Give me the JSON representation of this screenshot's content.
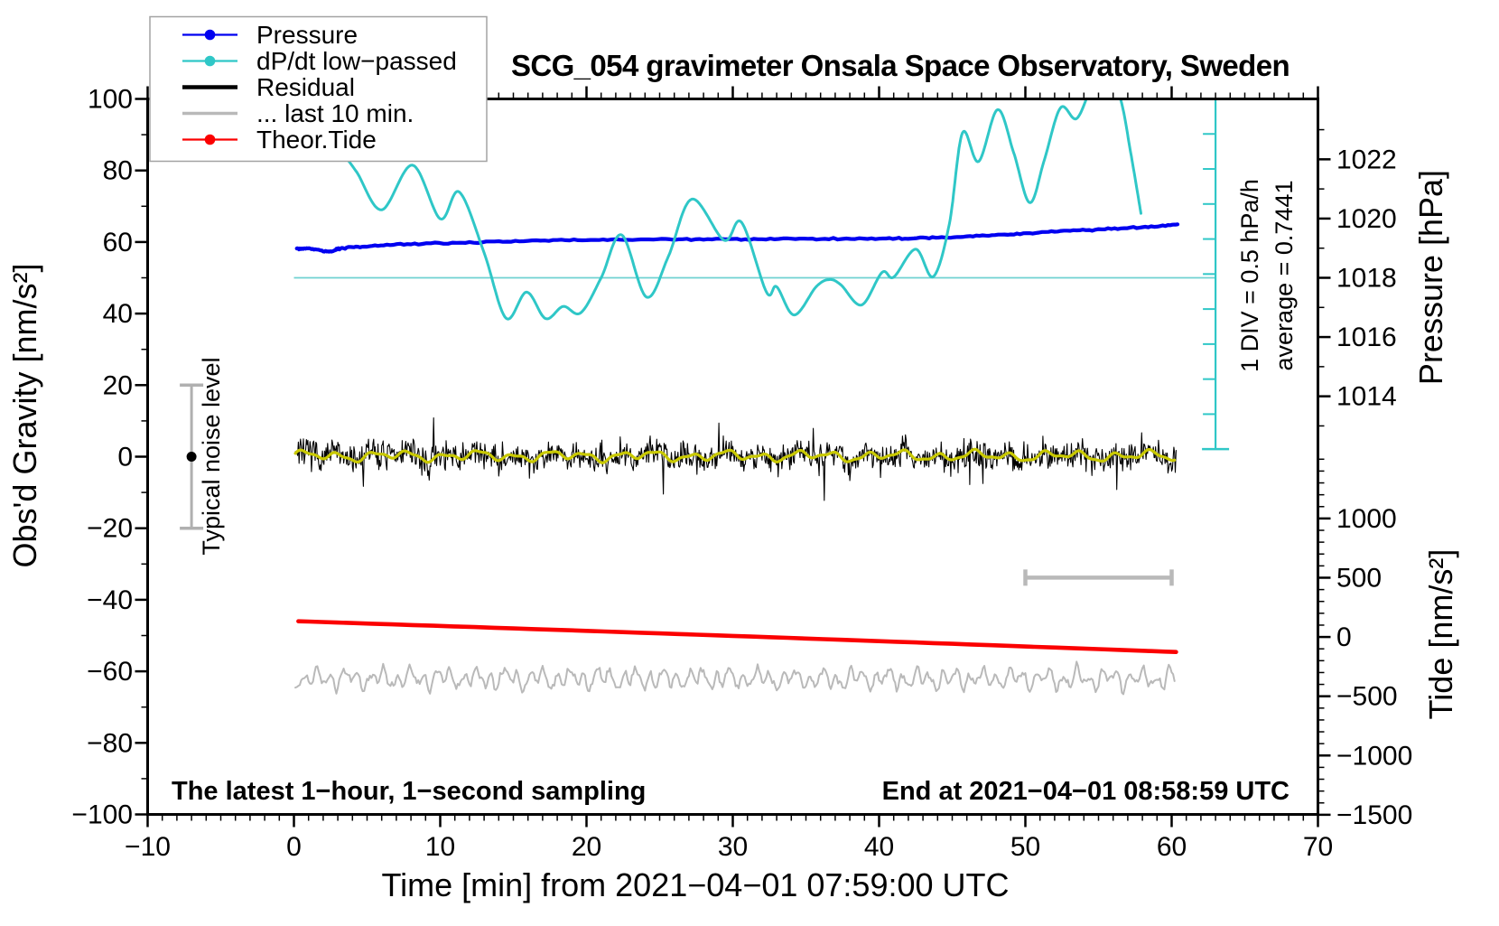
{
  "title": "SCG_054 gravimeter Onsala Space Observatory, Sweden",
  "annotations": {
    "sampling_note": "The latest 1−hour, 1−second sampling",
    "end_note": "End at 2021−04−01 08:58:59 UTC",
    "div_label": "1 DIV = 0.5 hPa/h",
    "average_label": "average = 0.7441",
    "noise_label": "Typical noise level"
  },
  "legend": {
    "items": [
      {
        "label": "Pressure",
        "color": "#0000f0",
        "dot": true,
        "lw": 2.2
      },
      {
        "label": "dP/dt low−passed",
        "color": "#2fc7c7",
        "dot": true,
        "lw": 2.2
      },
      {
        "label": "Residual",
        "color": "#000000",
        "dot": false,
        "lw": 4.5
      },
      {
        "label": "... last 10 min.",
        "color": "#b9b9b9",
        "dot": false,
        "lw": 3.5
      },
      {
        "label": "Theor.Tide",
        "color": "#fb0000",
        "dot": true,
        "lw": 2.2
      }
    ]
  },
  "colors": {
    "blue": "#0000f0",
    "cyan": "#2fc7c7",
    "cyan_light": "#6fd1d1",
    "red": "#fb0000",
    "gray": "#b9b9b9",
    "yellow": "#c9c900",
    "black": "#000000"
  },
  "chart_data": {
    "type": "line",
    "x_axis": {
      "title": "Time [min] from 2021−04−01 07:59:00 UTC",
      "range": [
        -10,
        70
      ],
      "major_step": 10,
      "minor_step": 1,
      "major_values": [
        -10,
        0,
        10,
        20,
        30,
        40,
        50,
        60,
        70
      ],
      "major_labels": [
        "−10",
        "0",
        "10",
        "20",
        "30",
        "40",
        "50",
        "60",
        "70"
      ]
    },
    "y_left_axis": {
      "title": "Obs'd Gravity [nm/s²]",
      "range": [
        -100,
        100
      ],
      "major_step": 20,
      "minor_step": 10,
      "major_values": [
        -100,
        -80,
        -60,
        -40,
        -20,
        0,
        20,
        40,
        60,
        80,
        100
      ],
      "major_labels": [
        "−100",
        "−80",
        "−60",
        "−40",
        "−20",
        "0",
        "20",
        "40",
        "60",
        "80",
        "100"
      ]
    },
    "pressure_axis": {
      "title": "Pressure [hPa]",
      "ref_hpa": 1018,
      "ref_g": 50,
      "g_per_hpa": 8.28,
      "major_values": [
        1014,
        1016,
        1018,
        1020,
        1022
      ],
      "major_labels": [
        "1014",
        "1016",
        "1018",
        "1020",
        "1022"
      ],
      "minor_step": 1,
      "minor_range": [
        1013,
        1023
      ]
    },
    "tide_axis": {
      "title": "Tide [nm/s²]",
      "ref_tide": 0,
      "ref_g": -50.4,
      "g_per_unit": 0.03313,
      "major_values": [
        -1500,
        -1000,
        -500,
        0,
        500,
        1000
      ],
      "major_labels": [
        "−1500",
        "−1000",
        "−500",
        "0",
        "500",
        "1000"
      ],
      "minor_step": 100,
      "minor_range": [
        -1500,
        1500
      ]
    },
    "ref_line": {
      "g": 50,
      "t_start": 0,
      "t_end": 63,
      "note": "dP/dt zero reference = 1018 hPa"
    },
    "div_bar": {
      "t": 63,
      "top_g": 100,
      "bottom_g": 2.1,
      "divisions": 10
    },
    "last10_bar": {
      "t_start": 50,
      "t_end": 60,
      "g": -33.8
    },
    "noise_indicator": {
      "t": -7,
      "g": 0,
      "half_range": 20
    },
    "series": {
      "pressure": {
        "name": "Pressure",
        "units": "gravity-equivalent nm/s2 (1018 hPa = 50)",
        "keypoints": [
          [
            0.2,
            58.2
          ],
          [
            1.2,
            58.1
          ],
          [
            2.4,
            57.3
          ],
          [
            3.2,
            58.2
          ],
          [
            5,
            58.8
          ],
          [
            8,
            59.4
          ],
          [
            12,
            59.9
          ],
          [
            16,
            60.3
          ],
          [
            20,
            60.6
          ],
          [
            24,
            60.75
          ],
          [
            28,
            60.75
          ],
          [
            32,
            60.8
          ],
          [
            36,
            60.9
          ],
          [
            40,
            60.9
          ],
          [
            43,
            61.1
          ],
          [
            46,
            61.6
          ],
          [
            49,
            62.2
          ],
          [
            52,
            62.9
          ],
          [
            55,
            63.5
          ],
          [
            58,
            64.2
          ],
          [
            60.4,
            64.8
          ]
        ]
      },
      "dpdt_lowpassed": {
        "name": "dP/dt low-passed",
        "keypoints": [
          [
            3.2,
            85.5
          ],
          [
            4.3,
            79.5
          ],
          [
            6.0,
            69
          ],
          [
            8.1,
            81.5
          ],
          [
            10.0,
            66.5
          ],
          [
            11.3,
            74
          ],
          [
            13.0,
            57
          ],
          [
            14.5,
            38.7
          ],
          [
            15.9,
            46
          ],
          [
            17.2,
            38.6
          ],
          [
            18.4,
            42
          ],
          [
            19.6,
            40.2
          ],
          [
            21.0,
            50
          ],
          [
            22.4,
            62
          ],
          [
            24.1,
            44.6
          ],
          [
            25.6,
            56
          ],
          [
            27.2,
            72
          ],
          [
            29.4,
            60.5
          ],
          [
            30.6,
            65.5
          ],
          [
            32.3,
            46
          ],
          [
            33.0,
            47.5
          ],
          [
            34.2,
            39.6
          ],
          [
            35.7,
            47.5
          ],
          [
            36.6,
            49.5
          ],
          [
            37.4,
            48
          ],
          [
            38.8,
            42.4
          ],
          [
            40.2,
            51.5
          ],
          [
            41.0,
            50.2
          ],
          [
            42.5,
            58
          ],
          [
            43.7,
            50.3
          ],
          [
            44.8,
            65
          ],
          [
            45.7,
            90.5
          ],
          [
            46.8,
            82.5
          ],
          [
            48.1,
            97
          ],
          [
            49.2,
            85
          ],
          [
            50.3,
            71
          ],
          [
            51.3,
            83
          ],
          [
            52.4,
            97.5
          ],
          [
            53.5,
            94.5
          ],
          [
            54.6,
            103.5
          ],
          [
            55.7,
            104.5
          ],
          [
            56.5,
            100
          ],
          [
            57.2,
            85
          ],
          [
            57.9,
            68
          ]
        ]
      },
      "theor_tide": {
        "name": "Theor.Tide",
        "keypoints": [
          [
            0.3,
            -46.0
          ],
          [
            15,
            -48.0
          ],
          [
            30,
            -50.1
          ],
          [
            45,
            -52.3
          ],
          [
            60.3,
            -54.6
          ]
        ]
      },
      "residual": {
        "name": "Residual",
        "t_start": 0.1,
        "t_end": 60.3,
        "mean_g": 0,
        "noise_std": 2.0,
        "spike_max": 11,
        "seed": 7
      },
      "residual_smoothed": {
        "name": "Residual low-passed (yellow)",
        "mean_g": 0.2,
        "amp": 1.2
      },
      "last10_trace": {
        "name": "... last 10 min.",
        "t_start": 0.1,
        "t_end": 60.3,
        "center_g": -62.0,
        "amp": 2.8,
        "seed": 11
      }
    }
  }
}
